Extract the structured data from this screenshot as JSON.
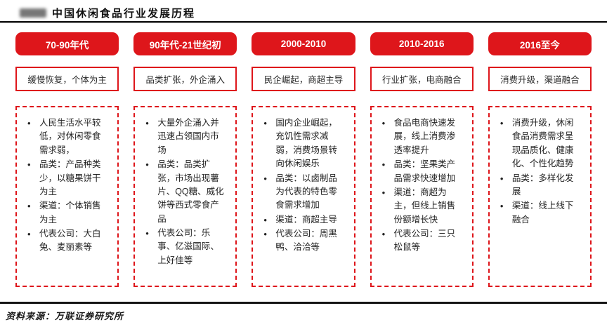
{
  "colors": {
    "accent": "#DE161B",
    "divider": "#161616"
  },
  "title": "中国休闲食品行业发展历程",
  "source_note": "资料来源：万联证券研究所",
  "columns": [
    {
      "era": "70-90年代",
      "summary": "缓慢恢复，个体为主",
      "bullets": [
        "人民生活水平较低，对休闲零食需求弱，",
        "品类：产品种类少，以糖果饼干为主",
        "渠道：个体销售为主",
        "代表公司：大白兔、麦丽素等"
      ]
    },
    {
      "era": "90年代-21世纪初",
      "summary": "品类扩张，外企涌入",
      "bullets": [
        "大量外企涌入并迅速占领国内市场",
        "品类：品类扩张，市场出现薯片、QQ糖、威化饼等西式零食产品",
        "代表公司：乐事、亿滋国际、上好佳等"
      ]
    },
    {
      "era": "2000-2010",
      "summary": "民企崛起，商超主导",
      "bullets": [
        "国内企业崛起，充饥性需求减弱，消费场景转向休闲娱乐",
        "品类：以卤制品为代表的特色零食需求增加",
        "渠道：商超主导",
        "代表公司：周黑鸭、洽洽等"
      ]
    },
    {
      "era": "2010-2016",
      "summary": "行业扩张，电商融合",
      "bullets": [
        "食品电商快速发展，线上消费渗透率提升",
        "品类：坚果类产品需求快速增加",
        "渠道：商超为主，但线上销售份额增长快",
        "代表公司：三只松鼠等"
      ]
    },
    {
      "era": "2016至今",
      "summary": "消费升级，渠道融合",
      "bullets": [
        "消费升级，休闲食品消费需求呈现品质化、健康化、个性化趋势",
        "品类：多样化发展",
        "渠道：线上线下融合"
      ]
    }
  ]
}
